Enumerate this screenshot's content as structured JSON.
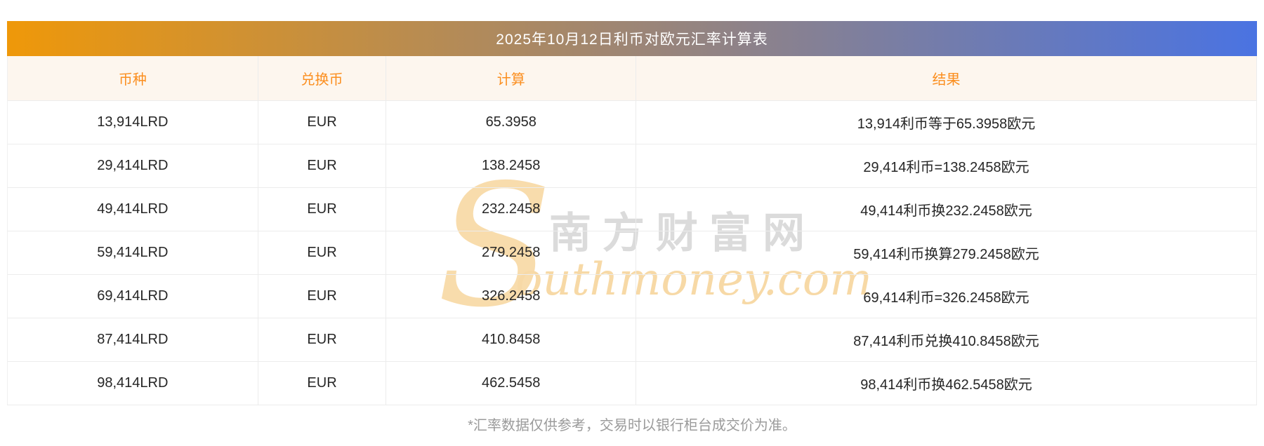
{
  "title": "2025年10月12日利币对欧元汇率计算表",
  "table": {
    "headers": [
      "币种",
      "兑换币",
      "计算",
      "结果"
    ],
    "rows": [
      {
        "currency": "13,914LRD",
        "exchange": "EUR",
        "calc": "65.3958",
        "result": "13,914利币等于65.3958欧元"
      },
      {
        "currency": "29,414LRD",
        "exchange": "EUR",
        "calc": "138.2458",
        "result": "29,414利币=138.2458欧元"
      },
      {
        "currency": "49,414LRD",
        "exchange": "EUR",
        "calc": "232.2458",
        "result": "49,414利币换232.2458欧元"
      },
      {
        "currency": "59,414LRD",
        "exchange": "EUR",
        "calc": "279.2458",
        "result": "59,414利币换算279.2458欧元"
      },
      {
        "currency": "69,414LRD",
        "exchange": "EUR",
        "calc": "326.2458",
        "result": "69,414利币=326.2458欧元"
      },
      {
        "currency": "87,414LRD",
        "exchange": "EUR",
        "calc": "410.8458",
        "result": "87,414利币兑换410.8458欧元"
      },
      {
        "currency": "98,414LRD",
        "exchange": "EUR",
        "calc": "462.5458",
        "result": "98,414利币换462.5458欧元"
      }
    ]
  },
  "watermark": {
    "s": "S",
    "cn": "南方财富网",
    "en": "outhmoney.com"
  },
  "footer": {
    "note": "*汇率数据仅供参考，交易时以银行柜台成交价为准。"
  },
  "colors": {
    "title_gradient_start": "#EF9809",
    "title_gradient_end": "#4A73E2",
    "title_text": "#FFFFFF",
    "header_bg": "#FDF6EE",
    "header_text": "#FB8E1E",
    "cell_text": "#262626",
    "divider": "#ECECEC",
    "footer_text": "#9B9B9B",
    "watermark_orange": "#F7D9A6",
    "watermark_gray": "#DBDBDB"
  }
}
